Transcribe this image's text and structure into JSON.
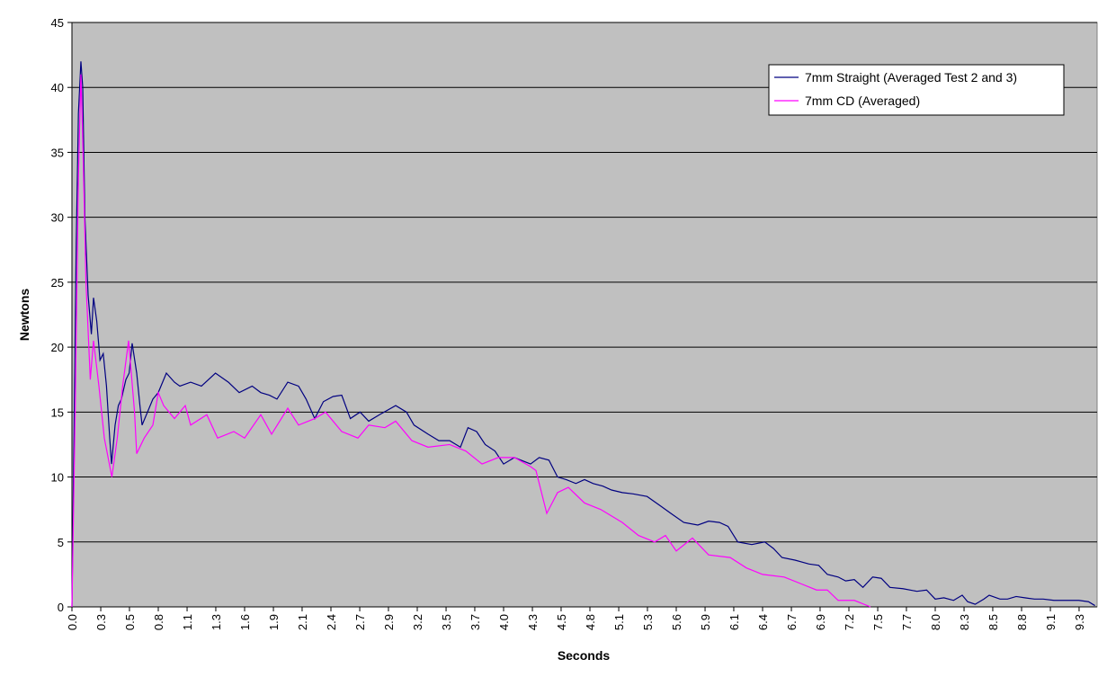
{
  "chart_data": {
    "type": "line",
    "xlabel": "Seconds",
    "ylabel": "Newtons",
    "xlim": [
      0,
      9.5
    ],
    "ylim": [
      0,
      45
    ],
    "yticks": [
      0,
      5,
      10,
      15,
      20,
      25,
      30,
      35,
      40,
      45
    ],
    "xticks": [
      {
        "value": 0,
        "label": "0.0"
      },
      {
        "value": 0.267,
        "label": "0.3"
      },
      {
        "value": 0.533,
        "label": "0.5"
      },
      0.8,
      {
        "value": 1.067,
        "label": "1.1"
      },
      {
        "value": 1.333,
        "label": "1.3"
      },
      1.6,
      {
        "value": 1.867,
        "label": "1.9"
      },
      {
        "value": 2.133,
        "label": "2.1"
      },
      2.4,
      {
        "value": 2.667,
        "label": "2.7"
      },
      {
        "value": 2.933,
        "label": "2.9"
      },
      3.2,
      {
        "value": 3.467,
        "label": "3.5"
      },
      {
        "value": 3.733,
        "label": "3.7"
      },
      {
        "value": 4.0,
        "label": "4.0"
      },
      {
        "value": 4.267,
        "label": "4.3"
      },
      {
        "value": 4.533,
        "label": "4.5"
      },
      4.8,
      {
        "value": 5.067,
        "label": "5.1"
      },
      {
        "value": 5.333,
        "label": "5.3"
      },
      5.6,
      {
        "value": 5.867,
        "label": "5.9"
      },
      {
        "value": 6.133,
        "label": "6.1"
      },
      6.4,
      {
        "value": 6.667,
        "label": "6.7"
      },
      {
        "value": 6.933,
        "label": "6.9"
      },
      7.2,
      {
        "value": 7.467,
        "label": "7.5"
      },
      {
        "value": 7.733,
        "label": "7.7"
      },
      {
        "value": 8.0,
        "label": "8.0"
      },
      {
        "value": 8.267,
        "label": "8.3"
      },
      {
        "value": 8.533,
        "label": "8.5"
      },
      8.8,
      {
        "value": 9.067,
        "label": "9.1"
      },
      {
        "value": 9.333,
        "label": "9.3"
      }
    ],
    "grid": true,
    "legend": "upper right",
    "series": [
      {
        "name": "7mm Straight (Averaged Test 2 and 3)",
        "color": "#000080",
        "x": [
          0,
          0.02,
          0.04,
          0.06,
          0.083,
          0.1,
          0.12,
          0.15,
          0.18,
          0.2,
          0.23,
          0.26,
          0.29,
          0.32,
          0.35,
          0.367,
          0.4,
          0.43,
          0.458,
          0.5,
          0.53,
          0.558,
          0.6,
          0.63,
          0.65,
          0.7,
          0.75,
          0.8,
          0.875,
          0.95,
          1.0,
          1.1,
          1.2,
          1.33,
          1.45,
          1.55,
          1.67,
          1.75,
          1.83,
          1.9,
          2.0,
          2.1,
          2.17,
          2.25,
          2.33,
          2.42,
          2.5,
          2.58,
          2.67,
          2.75,
          2.85,
          3.0,
          3.1,
          3.17,
          3.3,
          3.4,
          3.5,
          3.6,
          3.67,
          3.75,
          3.83,
          3.92,
          4.0,
          4.1,
          4.25,
          4.33,
          4.42,
          4.5,
          4.58,
          4.67,
          4.75,
          4.83,
          4.92,
          5.0,
          5.1,
          5.2,
          5.33,
          5.45,
          5.55,
          5.67,
          5.8,
          5.9,
          6.0,
          6.08,
          6.17,
          6.3,
          6.42,
          6.5,
          6.58,
          6.7,
          6.83,
          6.92,
          7.0,
          7.1,
          7.17,
          7.25,
          7.33,
          7.42,
          7.5,
          7.58,
          7.7,
          7.83,
          7.92,
          8.0,
          8.08,
          8.17,
          8.25,
          8.3,
          8.37,
          8.45,
          8.5,
          8.6,
          8.67,
          8.75,
          8.83,
          8.92,
          9.0,
          9.1,
          9.17,
          9.25,
          9.33,
          9.42,
          9.48
        ],
        "values": [
          0,
          14,
          28,
          38,
          42,
          40,
          30,
          24,
          21,
          23.8,
          22,
          19,
          19.5,
          17,
          13,
          11,
          14,
          15.5,
          16,
          17.5,
          18,
          20.3,
          18,
          15.5,
          14,
          15,
          16,
          16.5,
          18,
          17.3,
          17,
          17.3,
          17,
          18,
          17.3,
          16.5,
          17,
          16.5,
          16.3,
          16,
          17.3,
          17,
          16,
          14.5,
          15.8,
          16.2,
          16.3,
          14.5,
          15,
          14.3,
          14.8,
          15.5,
          15,
          14,
          13.3,
          12.8,
          12.8,
          12.3,
          13.8,
          13.5,
          12.5,
          12,
          11,
          11.5,
          11,
          11.5,
          11.3,
          10,
          9.8,
          9.5,
          9.8,
          9.5,
          9.3,
          9,
          8.8,
          8.7,
          8.5,
          7.8,
          7.2,
          6.5,
          6.3,
          6.6,
          6.5,
          6.2,
          5,
          4.8,
          5,
          4.5,
          3.8,
          3.6,
          3.3,
          3.2,
          2.5,
          2.3,
          2,
          2.1,
          1.5,
          2.3,
          2.2,
          1.5,
          1.4,
          1.2,
          1.3,
          0.6,
          0.7,
          0.5,
          0.9,
          0.4,
          0.2,
          0.6,
          0.9,
          0.6,
          0.6,
          0.8,
          0.7,
          0.6,
          0.6,
          0.5,
          0.5,
          0.5,
          0.5,
          0.4,
          0.1
        ]
      },
      {
        "name": "7mm CD (Averaged)",
        "color": "#ff00ff",
        "x": [
          0,
          0.03,
          0.06,
          0.083,
          0.1,
          0.13,
          0.17,
          0.2,
          0.25,
          0.3,
          0.37,
          0.42,
          0.47,
          0.525,
          0.58,
          0.6,
          0.67,
          0.75,
          0.8,
          0.85,
          0.95,
          1.05,
          1.1,
          1.25,
          1.35,
          1.5,
          1.6,
          1.75,
          1.85,
          2.0,
          2.1,
          2.25,
          2.35,
          2.5,
          2.65,
          2.75,
          2.9,
          3.0,
          3.15,
          3.3,
          3.5,
          3.65,
          3.8,
          3.95,
          4.1,
          4.25,
          4.3,
          4.4,
          4.5,
          4.6,
          4.75,
          4.9,
          5.1,
          5.25,
          5.4,
          5.5,
          5.6,
          5.75,
          5.9,
          6.1,
          6.25,
          6.4,
          6.6,
          6.75,
          6.9,
          7.0,
          7.1,
          7.25,
          7.4
        ],
        "values": [
          0,
          15,
          33,
          41,
          36,
          25,
          17.5,
          20.5,
          17,
          13,
          10,
          13,
          17,
          20.5,
          15,
          11.8,
          13,
          14,
          16.5,
          15.5,
          14.5,
          15.5,
          14,
          14.8,
          13,
          13.5,
          13,
          14.8,
          13.3,
          15.3,
          14,
          14.5,
          15,
          13.5,
          13,
          14,
          13.8,
          14.3,
          12.8,
          12.3,
          12.5,
          12,
          11,
          11.5,
          11.5,
          10.8,
          10.5,
          7.2,
          8.8,
          9.2,
          8,
          7.5,
          6.5,
          5.5,
          5,
          5.5,
          4.3,
          5.3,
          4,
          3.8,
          3,
          2.5,
          2.3,
          1.8,
          1.3,
          1.3,
          0.5,
          0.5,
          0
        ]
      }
    ]
  }
}
